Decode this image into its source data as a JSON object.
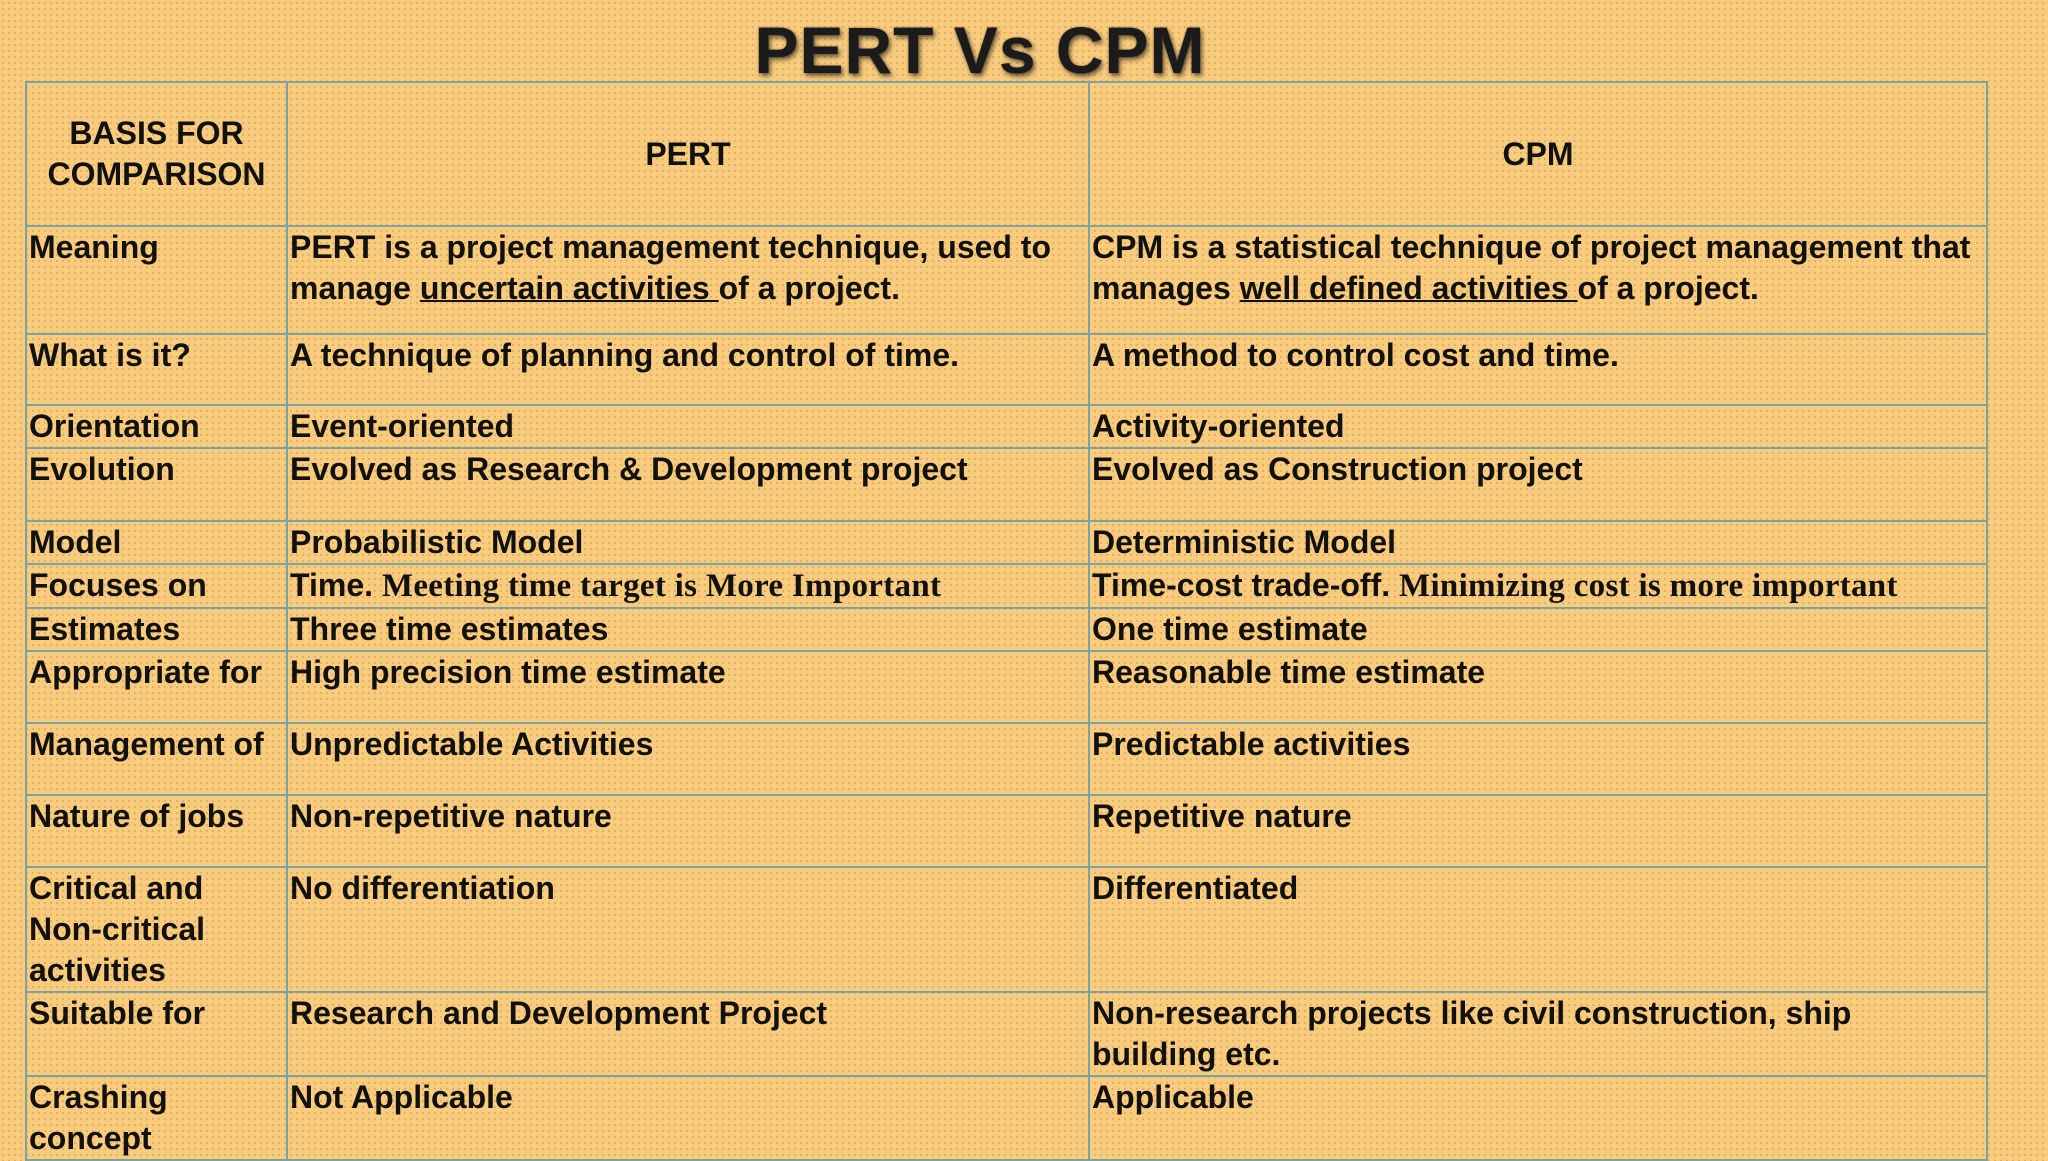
{
  "title": "PERT Vs CPM",
  "table": {
    "headers": [
      "BASIS FOR COMPARISON",
      "PERT",
      "CPM"
    ],
    "rows": [
      {
        "basis": "Meaning",
        "pert": {
          "pre": "PERT is a project management technique, used to manage ",
          "ul": "uncertain activities ",
          "post": "of a project."
        },
        "cpm": {
          "pre": "CPM is a statistical technique of project management that manages ",
          "ul": "well defined activities ",
          "post": "of a project."
        }
      },
      {
        "basis": "What is it?",
        "pert": "A technique of planning and control of time.",
        "cpm": "A method to control cost and time."
      },
      {
        "basis": "Orientation",
        "pert": "Event-oriented",
        "cpm": "Activity-oriented"
      },
      {
        "basis": "Evolution",
        "pert": "Evolved as Research & Development project",
        "cpm": "Evolved as Construction project"
      },
      {
        "basis": "Model",
        "pert": "Probabilistic Model",
        "cpm": "Deterministic Model"
      },
      {
        "basis": "Focuses on",
        "pert": {
          "main": "Time.",
          "note": "Meeting time target is More Important"
        },
        "cpm": {
          "main": "Time-cost trade-off.",
          "note": "Minimizing cost is more important"
        }
      },
      {
        "basis": "Estimates",
        "pert": "Three time estimates",
        "cpm": "One time estimate"
      },
      {
        "basis": "Appropriate for",
        "pert": "High precision time estimate",
        "cpm": "Reasonable time estimate"
      },
      {
        "basis": "Management of",
        "pert": "Unpredictable Activities",
        "cpm": "Predictable activities"
      },
      {
        "basis": "Nature of jobs",
        "pert": "Non-repetitive nature",
        "cpm": "Repetitive nature"
      },
      {
        "basis": "Critical and Non-critical activities",
        "pert": "No differentiation",
        "cpm": "Differentiated"
      },
      {
        "basis": "Suitable for",
        "pert": "Research and Development Project",
        "cpm": "Non-research projects like civil construction, ship building etc."
      },
      {
        "basis": "Crashing concept",
        "pert": "Not Applicable",
        "cpm": "Applicable"
      }
    ]
  },
  "colors": {
    "background": "#f8cb7d",
    "grid_line": "#7aa3a6",
    "text": "#111111"
  }
}
